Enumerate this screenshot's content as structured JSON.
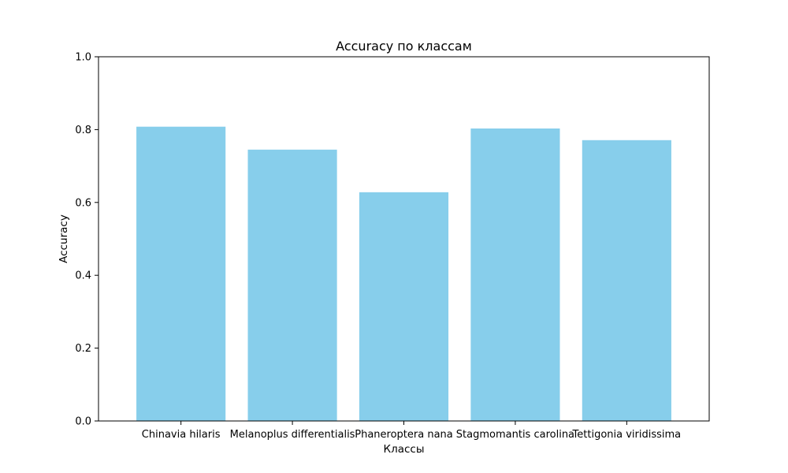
{
  "chart_data": {
    "type": "bar",
    "title": "Accuracy по классам",
    "xlabel": "Классы",
    "ylabel": "Accuracy",
    "categories": [
      "Chinavia hilaris",
      "Melanoplus differentialis",
      "Phaneroptera nana",
      "Stagmomantis carolina",
      "Tettigonia viridissima"
    ],
    "values": [
      0.808,
      0.745,
      0.628,
      0.803,
      0.771
    ],
    "ylim": [
      0,
      1.0
    ],
    "yticks": [
      "0.0",
      "0.2",
      "0.4",
      "0.6",
      "0.8",
      "1.0"
    ],
    "bar_color": "#87ceeb",
    "grid": false,
    "legend": false
  }
}
